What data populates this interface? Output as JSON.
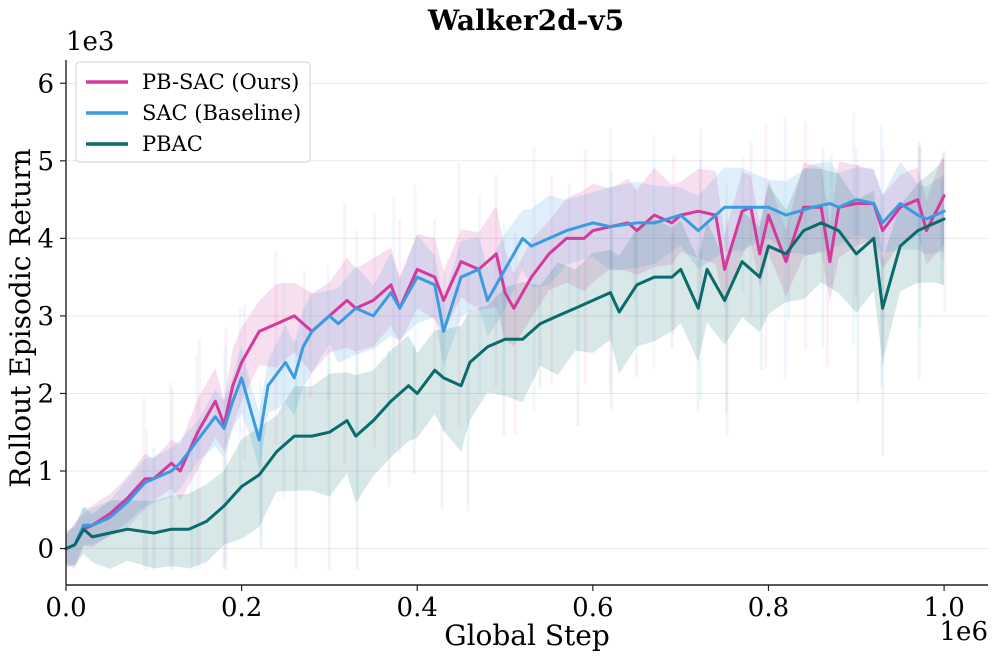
{
  "chart_data": {
    "type": "line",
    "title": "Walker2d-v5",
    "xlabel": "Global Step",
    "ylabel": "Rollout Episodic Return",
    "x_multiplier_label": "1e6",
    "y_multiplier_label": "1e3",
    "xlim": [
      0,
      1.05
    ],
    "ylim": [
      -0.47,
      6.3
    ],
    "x_ticks": [
      0.0,
      0.2,
      0.4,
      0.6,
      0.8,
      1.0
    ],
    "x_tick_labels": [
      "0.0",
      "0.2",
      "0.4",
      "0.6",
      "0.8",
      "1.0"
    ],
    "y_ticks": [
      0,
      1,
      2,
      3,
      4,
      5,
      6
    ],
    "y_tick_labels": [
      "0",
      "1",
      "2",
      "3",
      "4",
      "5",
      "6"
    ],
    "grid": true,
    "legend_position": "top-left",
    "series": [
      {
        "name": "PB-SAC (Ours)",
        "color": "#d6389b",
        "x": [
          0.0,
          0.01,
          0.02,
          0.03,
          0.05,
          0.07,
          0.09,
          0.1,
          0.12,
          0.13,
          0.15,
          0.17,
          0.18,
          0.19,
          0.2,
          0.22,
          0.24,
          0.26,
          0.28,
          0.3,
          0.32,
          0.33,
          0.35,
          0.37,
          0.38,
          0.4,
          0.42,
          0.43,
          0.45,
          0.47,
          0.49,
          0.5,
          0.51,
          0.53,
          0.55,
          0.57,
          0.59,
          0.6,
          0.62,
          0.64,
          0.65,
          0.67,
          0.69,
          0.7,
          0.72,
          0.74,
          0.75,
          0.77,
          0.78,
          0.79,
          0.8,
          0.82,
          0.84,
          0.86,
          0.87,
          0.88,
          0.9,
          0.92,
          0.93,
          0.95,
          0.97,
          0.98,
          1.0
        ],
        "values": [
          0.0,
          0.05,
          0.25,
          0.3,
          0.45,
          0.65,
          0.9,
          0.9,
          1.1,
          1.0,
          1.5,
          1.9,
          1.6,
          2.1,
          2.4,
          2.8,
          2.9,
          3.0,
          2.8,
          3.0,
          3.2,
          3.1,
          3.2,
          3.4,
          3.1,
          3.6,
          3.5,
          3.2,
          3.7,
          3.6,
          3.8,
          3.3,
          3.1,
          3.5,
          3.8,
          4.0,
          4.0,
          4.1,
          4.15,
          4.2,
          4.1,
          4.3,
          4.2,
          4.3,
          4.35,
          4.3,
          3.6,
          4.35,
          4.4,
          3.8,
          4.3,
          3.7,
          4.4,
          4.4,
          3.7,
          4.4,
          4.45,
          4.45,
          4.1,
          4.4,
          4.5,
          4.1,
          4.55
        ]
      },
      {
        "name": "SAC (Baseline)",
        "color": "#3a9be0",
        "x": [
          0.0,
          0.01,
          0.02,
          0.03,
          0.05,
          0.07,
          0.09,
          0.1,
          0.12,
          0.13,
          0.15,
          0.17,
          0.18,
          0.19,
          0.2,
          0.21,
          0.22,
          0.23,
          0.25,
          0.26,
          0.27,
          0.28,
          0.3,
          0.31,
          0.33,
          0.35,
          0.37,
          0.38,
          0.4,
          0.42,
          0.43,
          0.45,
          0.47,
          0.48,
          0.5,
          0.52,
          0.53,
          0.55,
          0.57,
          0.6,
          0.62,
          0.65,
          0.67,
          0.7,
          0.72,
          0.75,
          0.77,
          0.8,
          0.82,
          0.85,
          0.87,
          0.88,
          0.9,
          0.92,
          0.93,
          0.95,
          0.97,
          0.98,
          1.0
        ],
        "values": [
          0.0,
          0.05,
          0.3,
          0.3,
          0.4,
          0.6,
          0.85,
          0.9,
          1.0,
          1.1,
          1.4,
          1.7,
          1.55,
          1.9,
          2.2,
          1.8,
          1.4,
          2.1,
          2.4,
          2.2,
          2.6,
          2.8,
          3.0,
          2.9,
          3.1,
          3.0,
          3.3,
          3.1,
          3.5,
          3.4,
          2.8,
          3.5,
          3.6,
          3.2,
          3.6,
          4.0,
          3.9,
          4.0,
          4.1,
          4.2,
          4.15,
          4.2,
          4.2,
          4.3,
          4.1,
          4.4,
          4.4,
          4.4,
          4.3,
          4.4,
          4.45,
          4.4,
          4.5,
          4.45,
          4.2,
          4.45,
          4.3,
          4.25,
          4.35
        ]
      },
      {
        "name": "PBAC",
        "color": "#0b6b6b",
        "x": [
          0.0,
          0.01,
          0.02,
          0.03,
          0.05,
          0.07,
          0.1,
          0.12,
          0.14,
          0.16,
          0.18,
          0.2,
          0.22,
          0.24,
          0.26,
          0.28,
          0.3,
          0.32,
          0.33,
          0.35,
          0.37,
          0.39,
          0.4,
          0.42,
          0.43,
          0.45,
          0.46,
          0.48,
          0.5,
          0.52,
          0.54,
          0.56,
          0.58,
          0.6,
          0.62,
          0.63,
          0.65,
          0.67,
          0.69,
          0.7,
          0.72,
          0.73,
          0.75,
          0.77,
          0.79,
          0.8,
          0.82,
          0.84,
          0.86,
          0.88,
          0.9,
          0.92,
          0.93,
          0.95,
          0.97,
          0.99,
          1.0
        ],
        "values": [
          0.0,
          0.05,
          0.25,
          0.15,
          0.2,
          0.25,
          0.2,
          0.25,
          0.25,
          0.35,
          0.55,
          0.8,
          0.95,
          1.25,
          1.45,
          1.45,
          1.5,
          1.65,
          1.45,
          1.65,
          1.9,
          2.1,
          2.0,
          2.3,
          2.2,
          2.1,
          2.4,
          2.6,
          2.7,
          2.7,
          2.9,
          3.0,
          3.1,
          3.2,
          3.3,
          3.05,
          3.4,
          3.5,
          3.5,
          3.6,
          3.1,
          3.6,
          3.2,
          3.7,
          3.5,
          3.9,
          3.8,
          4.1,
          4.2,
          4.1,
          3.8,
          4.0,
          3.1,
          3.9,
          4.1,
          4.2,
          4.25
        ]
      }
    ]
  }
}
